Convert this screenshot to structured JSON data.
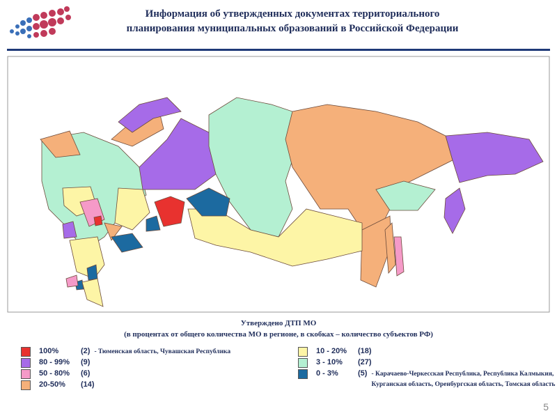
{
  "header": {
    "title": [
      "Информация об утвержденных документах территориального",
      "планирования муниципальных образований в Российской Федерации"
    ]
  },
  "legend": {
    "title": "Утверждено ДТП МО",
    "subtitle": "(в процентах от общего количества МО в регионе, в скобках – количество субъектов РФ)",
    "items": [
      {
        "range": "100%",
        "count": "(2)",
        "note": "- Тюменская область, Чувашская Республика",
        "color": "#e8322f"
      },
      {
        "range": "80 - 99%",
        "count": "(9)",
        "color": "#a66be8"
      },
      {
        "range": "50 - 80%",
        "count": "(6)",
        "color": "#f59ac8"
      },
      {
        "range": "20-50%",
        "count": "(14)",
        "color": "#f5b07a"
      },
      {
        "range": "10 - 20%",
        "count": "(18)",
        "color": "#fdf5a6"
      },
      {
        "range": "3 - 10%",
        "count": "(27)",
        "color": "#b4f0d2"
      },
      {
        "range": "0 - 3%",
        "count": "(5)",
        "note": "- Карачаево-Черкесская Республика, Республика Калмыкия, Курганская область, Оренбургская область, Томская область",
        "color": "#1c6aa0"
      }
    ]
  },
  "page_number": "5"
}
